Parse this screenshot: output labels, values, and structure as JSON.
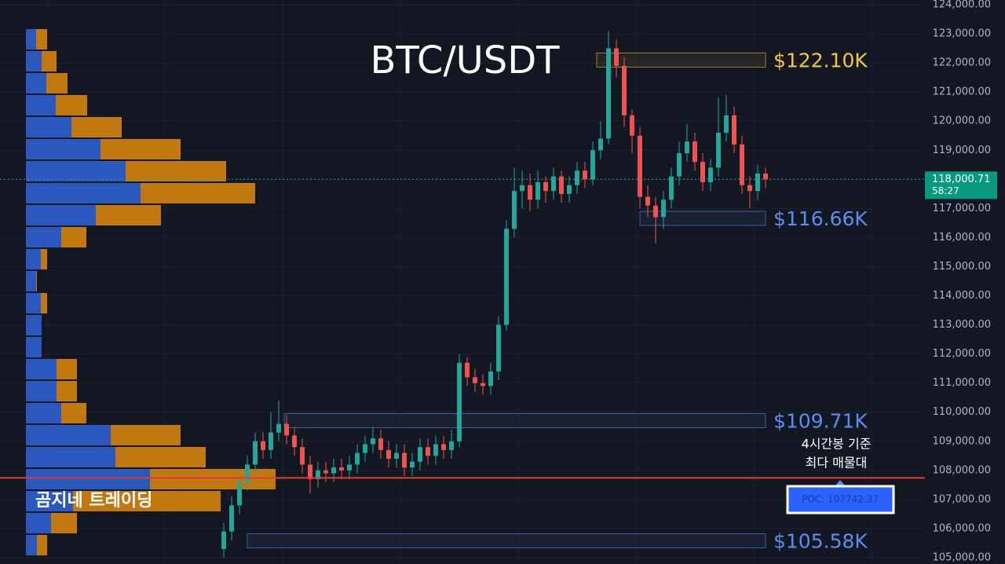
{
  "chart_data": {
    "type": "candlestick",
    "title": "BTC/USDT",
    "ylim": [
      104784,
      124162
    ],
    "yticks": [
      {
        "value": 105000,
        "label": "105,000.00"
      },
      {
        "value": 106000,
        "label": "106,000.00"
      },
      {
        "value": 107000,
        "label": "107,000.00"
      },
      {
        "value": 108000,
        "label": "108,000.00"
      },
      {
        "value": 109000,
        "label": "109,000.00"
      },
      {
        "value": 110000,
        "label": "110,000.00"
      },
      {
        "value": 111000,
        "label": "111,000.00"
      },
      {
        "value": 112000,
        "label": "112,000.00"
      },
      {
        "value": 113000,
        "label": "113,000.00"
      },
      {
        "value": 114000,
        "label": "114,000.00"
      },
      {
        "value": 115000,
        "label": "115,000.00"
      },
      {
        "value": 116000,
        "label": "116,000.00"
      },
      {
        "value": 117000,
        "label": "117,000.00"
      },
      {
        "value": 118000,
        "label": "118,000.00"
      },
      {
        "value": 119000,
        "label": "119,000.00"
      },
      {
        "value": 120000,
        "label": "120,000.00"
      },
      {
        "value": 121000,
        "label": "121,000.00"
      },
      {
        "value": 122000,
        "label": "122,000.00"
      },
      {
        "value": 123000,
        "label": "123,000.00"
      },
      {
        "value": 124000,
        "label": "124,000.00"
      }
    ],
    "open": [
      105300,
      105900,
      106800,
      107600,
      108200,
      109000,
      108700,
      109300,
      109600,
      109200,
      108800,
      108200,
      107700,
      108000,
      107900,
      108100,
      108000,
      108200,
      108600,
      108900,
      109100,
      108700,
      108400,
      108600,
      108100,
      108300,
      108800,
      108500,
      108900,
      108700,
      109000,
      111700,
      111200,
      111000,
      110900,
      111400,
      113000,
      116300,
      117600,
      117800,
      117300,
      117900,
      117600,
      118100,
      117500,
      117800,
      118300,
      118000,
      119000,
      119400,
      122500,
      121900,
      120200,
      119500,
      117400,
      117100,
      116700,
      117300,
      118100,
      118900,
      119300,
      118600,
      117900,
      118400,
      119600,
      120200,
      119200,
      117800,
      117600,
      118200
    ],
    "high": [
      106200,
      107100,
      107900,
      108500,
      109300,
      109300,
      110000,
      110400,
      109900,
      109500,
      109100,
      108500,
      108300,
      108300,
      108400,
      108400,
      108500,
      108900,
      109200,
      109500,
      109400,
      109000,
      108900,
      108900,
      108600,
      109100,
      109100,
      109200,
      109200,
      109400,
      112000,
      111900,
      111500,
      111300,
      111700,
      113300,
      116600,
      118400,
      118300,
      118200,
      118300,
      118100,
      118400,
      118300,
      118100,
      118600,
      118600,
      119300,
      120000,
      123100,
      122800,
      122200,
      120400,
      119800,
      117800,
      117400,
      117600,
      118400,
      119300,
      119900,
      119600,
      118900,
      118700,
      120800,
      120900,
      120500,
      119500,
      118100,
      118500,
      118400
    ],
    "low": [
      105000,
      105600,
      106500,
      107300,
      107900,
      108400,
      108400,
      109000,
      108900,
      108500,
      107900,
      107200,
      107400,
      107600,
      107600,
      107700,
      107700,
      107900,
      108300,
      108600,
      108400,
      108100,
      108100,
      107800,
      107800,
      108000,
      108200,
      108200,
      108400,
      108400,
      108800,
      110900,
      110700,
      110600,
      110600,
      111100,
      112800,
      116000,
      117000,
      116900,
      117000,
      117200,
      117300,
      117200,
      117200,
      117500,
      117700,
      117800,
      118700,
      119200,
      121500,
      119800,
      118900,
      117000,
      116700,
      115800,
      116300,
      117000,
      117800,
      118600,
      118300,
      117600,
      117600,
      118100,
      119300,
      118900,
      117500,
      117000,
      117300,
      117700
    ],
    "close": [
      105900,
      106800,
      107600,
      108200,
      109000,
      108700,
      109300,
      109600,
      109200,
      108800,
      108200,
      107700,
      108000,
      107900,
      108100,
      108000,
      108200,
      108600,
      108900,
      109100,
      108700,
      108400,
      108600,
      108100,
      108300,
      108800,
      108500,
      108900,
      108700,
      109000,
      111700,
      111200,
      111000,
      110900,
      111400,
      113000,
      116300,
      117600,
      117800,
      117300,
      117900,
      117600,
      118100,
      117500,
      117800,
      118300,
      118000,
      119000,
      119400,
      122500,
      121900,
      120200,
      119500,
      117400,
      117100,
      116700,
      117300,
      118100,
      118900,
      119300,
      118600,
      117900,
      118400,
      119600,
      120200,
      119200,
      117800,
      117600,
      118200,
      118000
    ],
    "up_color": "#26a69a",
    "down_color": "#ef5350",
    "profile": {
      "buy": [
        13,
        20,
        26,
        38,
        58,
        95,
        127,
        146,
        89,
        45,
        19,
        13,
        19,
        20,
        20,
        39,
        39,
        45,
        108,
        114,
        158,
        60,
        32,
        14
      ],
      "sell": [
        14,
        19,
        27,
        40,
        64,
        102,
        128,
        146,
        83,
        32,
        8,
        1,
        8,
        0,
        0,
        26,
        26,
        32,
        89,
        115,
        160,
        188,
        33,
        13
      ],
      "buy_color": "#2f5fd0",
      "sell_color": "#e08a0e"
    },
    "levels": [
      {
        "value": 122100,
        "label": "$122.10K",
        "color": "#f5c542"
      },
      {
        "value": 116660,
        "label": "$116.66K",
        "color": "#5b8def"
      },
      {
        "value": 109710,
        "label": "$109.71K",
        "color": "#5b8def"
      },
      {
        "value": 105580,
        "label": "$105.58K",
        "color": "#5b8def"
      }
    ],
    "poc": {
      "value": 107742.37,
      "label": "POC: 107742.37",
      "color": "#e53935"
    },
    "poc_caption": [
      "4시간봉 기준",
      "최다 매물대"
    ],
    "last_price": {
      "value": 118000.71,
      "label": "118,000.71",
      "countdown": "58:27"
    },
    "watermark": "곰지네 트레이딩"
  }
}
